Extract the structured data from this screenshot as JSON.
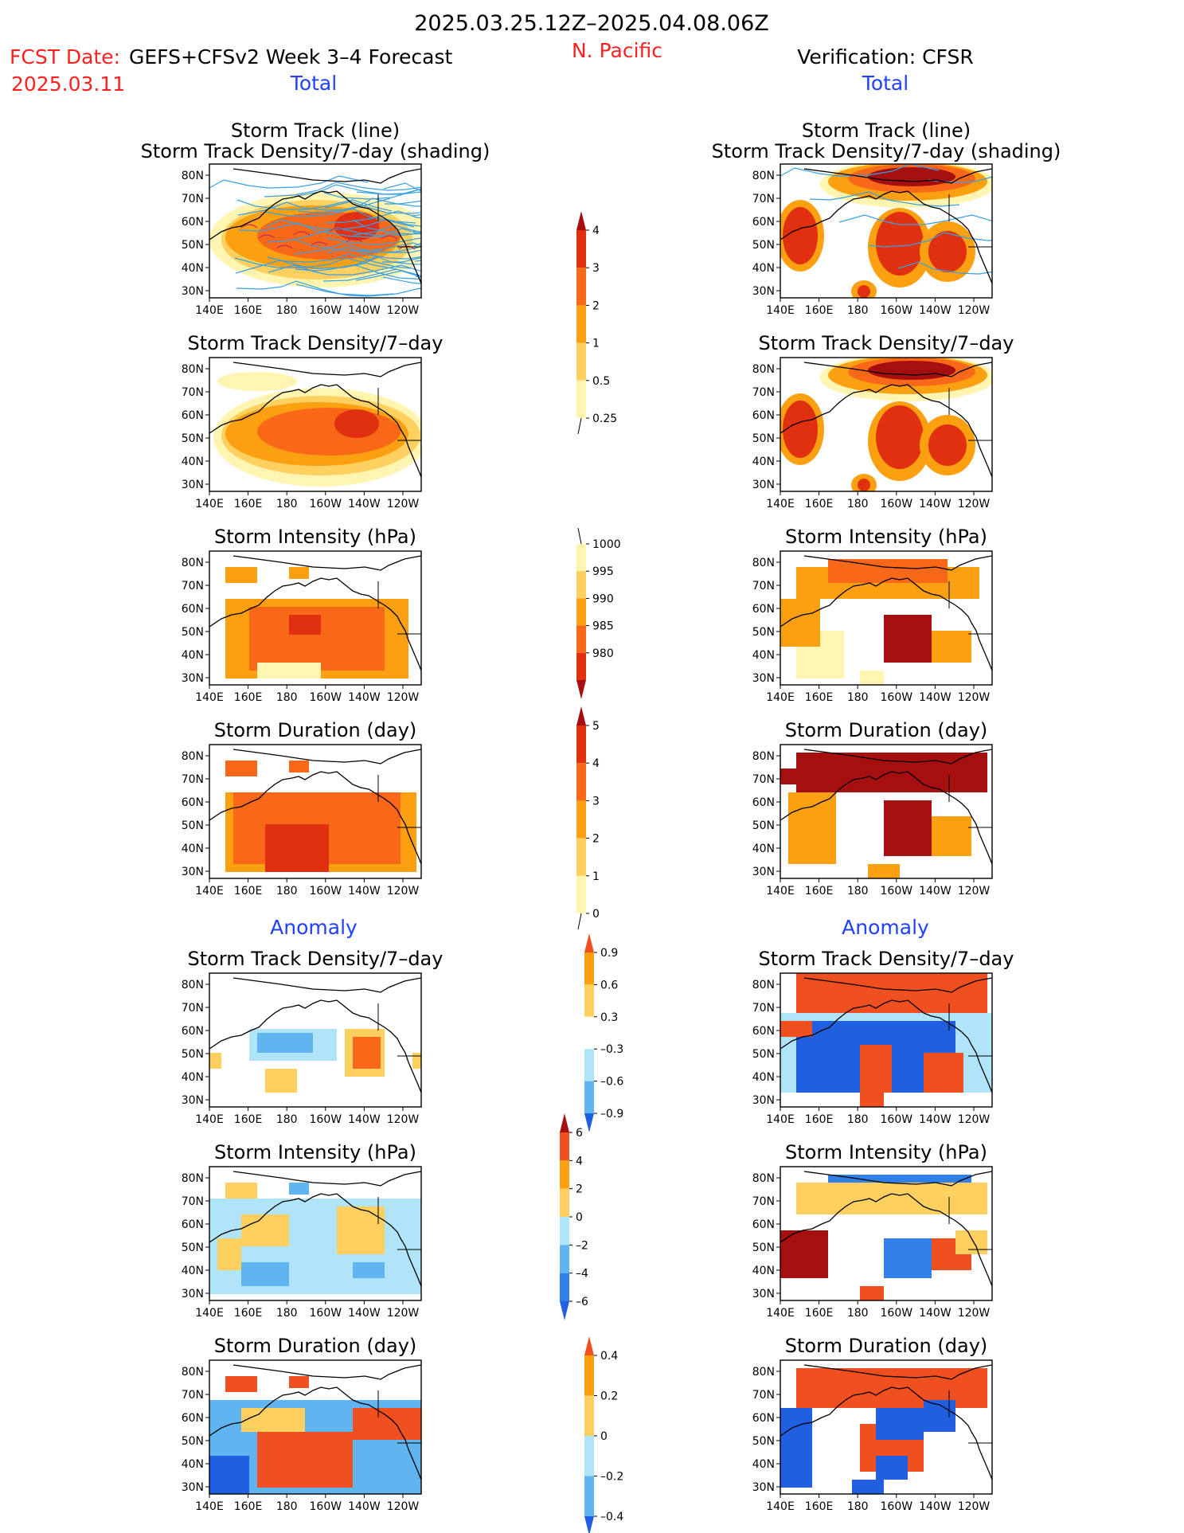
{
  "header": {
    "period": "2025.03.25.12Z–2025.04.08.06Z",
    "fcst_date_label": "FCST Date:",
    "fcst_date": "2025.03.11",
    "model": "GEFS+CFSv2 Week 3–4 Forecast",
    "region": "N. Pacific",
    "verification": "Verification: CFSR"
  },
  "sections": {
    "total": "Total",
    "anomaly": "Anomaly"
  },
  "colors": {
    "title_red": "#ff2020",
    "title_blue": "#2040ff",
    "track_line": "#3aa0e0"
  },
  "chart_data": {
    "type": "heatmap",
    "map_axes": {
      "x_ticks": [
        "140E",
        "160E",
        "180",
        "160W",
        "140W",
        "120W"
      ],
      "y_ticks": [
        "80N",
        "70N",
        "60N",
        "50N",
        "40N",
        "30N"
      ]
    },
    "panels": {
      "left": [
        {
          "title_line1": "Storm Track (line)",
          "title_line2": "Storm Track Density/7-day (shading)"
        },
        {
          "title_line1": "Storm Track Density/7–day"
        },
        {
          "title_line1": "Storm Intensity (hPa)"
        },
        {
          "title_line1": "Storm Duration (day)"
        },
        {
          "title_line1": "Storm Track Density/7–day"
        },
        {
          "title_line1": "Storm Intensity (hPa)"
        },
        {
          "title_line1": "Storm Duration (day)"
        }
      ],
      "right": [
        {
          "title_line1": "Storm Track (line)",
          "title_line2": "Storm Track Density/7-day (shading)"
        },
        {
          "title_line1": "Storm Track Density/7–day"
        },
        {
          "title_line1": "Storm Intensity (hPa)"
        },
        {
          "title_line1": "Storm Duration (day)"
        },
        {
          "title_line1": "Storm Track Density/7–day"
        },
        {
          "title_line1": "Storm Intensity (hPa)"
        },
        {
          "title_line1": "Storm Duration (day)"
        }
      ]
    },
    "colorbars": [
      {
        "name": "density",
        "labels": [
          "4",
          "3",
          "2",
          "1",
          "0.5",
          "0.25"
        ],
        "colors": [
          "#a50f0f",
          "#e03010",
          "#f86818",
          "#fba010",
          "#fdd060",
          "#fff4b0"
        ],
        "arrow": "top"
      },
      {
        "name": "intensity",
        "labels": [
          "1000",
          "995",
          "990",
          "985",
          "980"
        ],
        "colors": [
          "#fff4b0",
          "#fdd060",
          "#fba010",
          "#f86818",
          "#e03010",
          "#a50f0f"
        ],
        "arrow": "bottom"
      },
      {
        "name": "duration",
        "labels": [
          "5",
          "4",
          "3",
          "2",
          "1",
          "0"
        ],
        "colors": [
          "#a50f0f",
          "#e03010",
          "#f86818",
          "#fba010",
          "#fdd060",
          "#fff4b0"
        ],
        "arrow": "top"
      },
      {
        "name": "density-anomaly",
        "labels": [
          "0.9",
          "0.6",
          "0.3",
          "–0.3",
          "–0.6",
          "–0.9"
        ],
        "colors": [
          "#f05020",
          "#fba010",
          "#fdd060",
          "#ffffff",
          "#b0e4f8",
          "#60b4f0",
          "#2060e0"
        ],
        "arrow": "both"
      },
      {
        "name": "intensity-anomaly",
        "labels": [
          "6",
          "4",
          "2",
          "0",
          "–2",
          "–4",
          "–6"
        ],
        "colors": [
          "#a50f0f",
          "#f05020",
          "#fba010",
          "#fdd060",
          "#b0e4f8",
          "#60b4f0",
          "#3080e8",
          "#2060e0"
        ],
        "arrow": "both"
      },
      {
        "name": "duration-anomaly",
        "labels": [
          "0.4",
          "0.2",
          "0",
          "–0.2",
          "–0.4"
        ],
        "colors": [
          "#f05020",
          "#fba010",
          "#fdd060",
          "#b0e4f8",
          "#60b4f0",
          "#2060e0"
        ],
        "arrow": "both"
      }
    ]
  }
}
